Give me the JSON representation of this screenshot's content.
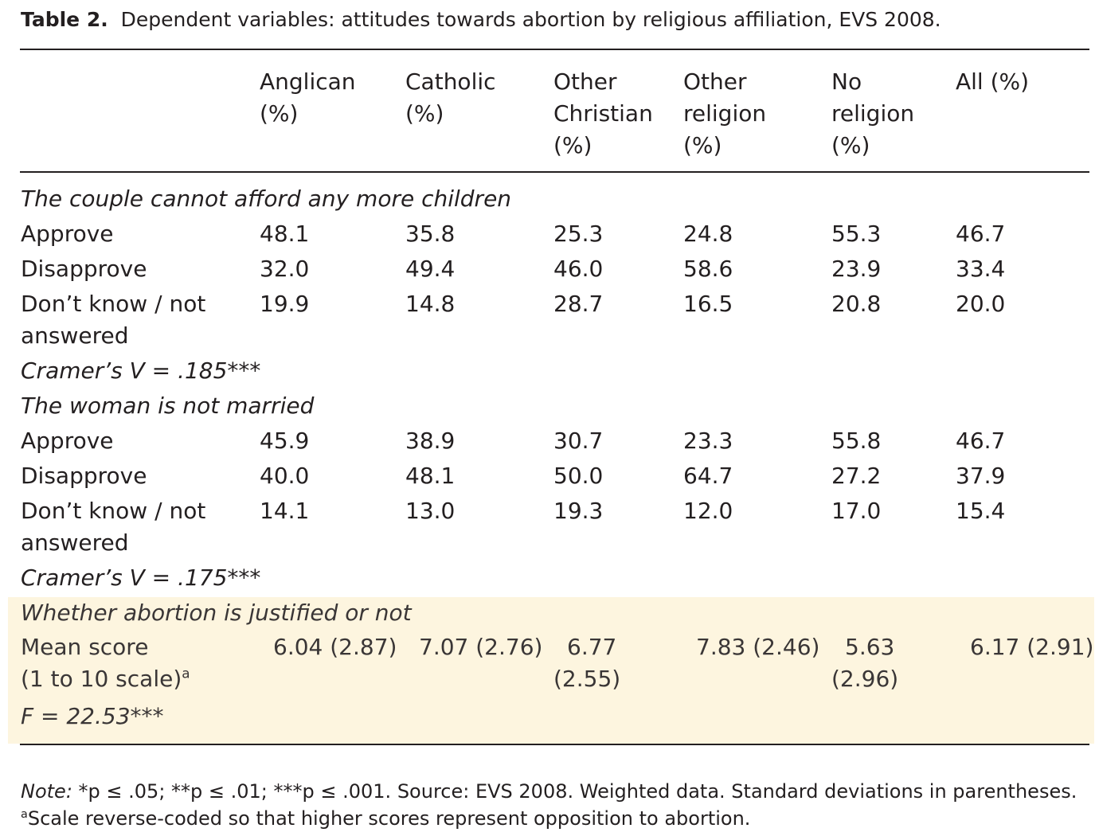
{
  "caption": {
    "label": "Table 2.",
    "text": "Dependent variables: attitudes towards abortion by religious affiliation, EVS 2008."
  },
  "headers": [
    [
      "Anglican",
      "(%)"
    ],
    [
      "Catholic",
      "(%)"
    ],
    [
      "Other",
      "Christian",
      "(%)"
    ],
    [
      "Other",
      "religion",
      "(%)"
    ],
    [
      "No",
      "religion",
      "(%)"
    ],
    [
      "All (%)"
    ]
  ],
  "section1": {
    "title": "The couple cannot afford any more children",
    "rows": [
      {
        "label": "Approve",
        "values": [
          "48.1",
          "35.8",
          "25.3",
          "24.8",
          "55.3",
          "46.7"
        ]
      },
      {
        "label": "Disapprove",
        "values": [
          "32.0",
          "49.4",
          "46.0",
          "58.6",
          "23.9",
          "33.4"
        ]
      },
      {
        "label_line1": "Don’t know / not",
        "label_line2": "answered",
        "values": [
          "19.9",
          "14.8",
          "28.7",
          "16.5",
          "20.8",
          "20.0"
        ]
      }
    ],
    "stat": "Cramer’s V = .185***"
  },
  "section2": {
    "title": "The woman is not married",
    "rows": [
      {
        "label": "Approve",
        "values": [
          "45.9",
          "38.9",
          "30.7",
          "23.3",
          "55.8",
          "46.7"
        ]
      },
      {
        "label": "Disapprove",
        "values": [
          "40.0",
          "48.1",
          "50.0",
          "64.7",
          "27.2",
          "37.9"
        ]
      },
      {
        "label_line1": "Don’t know / not",
        "label_line2": "answered",
        "values": [
          "14.1",
          "13.0",
          "19.3",
          "12.0",
          "17.0",
          "15.4"
        ]
      }
    ],
    "stat": "Cramer’s V = .175***"
  },
  "section3": {
    "title": "Whether abortion is justified or not",
    "label_line1": "Mean score",
    "label_line2": "(1 to 10 scale)",
    "label_sup": "a",
    "values": [
      "6.04 (2.87)",
      "7.07 (2.76)",
      "6.77",
      "7.83 (2.46)",
      "5.63",
      "6.17 (2.91)"
    ],
    "values_line2": [
      "(2.55)",
      "(2.96)"
    ],
    "stat": "F = 22.53***"
  },
  "notes": {
    "line1_label": "Note:",
    "line1_text": "*p ≤ .05; **p ≤ .01; ***p ≤ .001. Source: EVS 2008. Weighted data. Standard deviations in parentheses.",
    "line2_sup": "a",
    "line2_text": "Scale reverse-coded so that higher scores represent opposition to abortion."
  },
  "colors": {
    "highlight": "#fdf5df",
    "text": "#231f20"
  }
}
